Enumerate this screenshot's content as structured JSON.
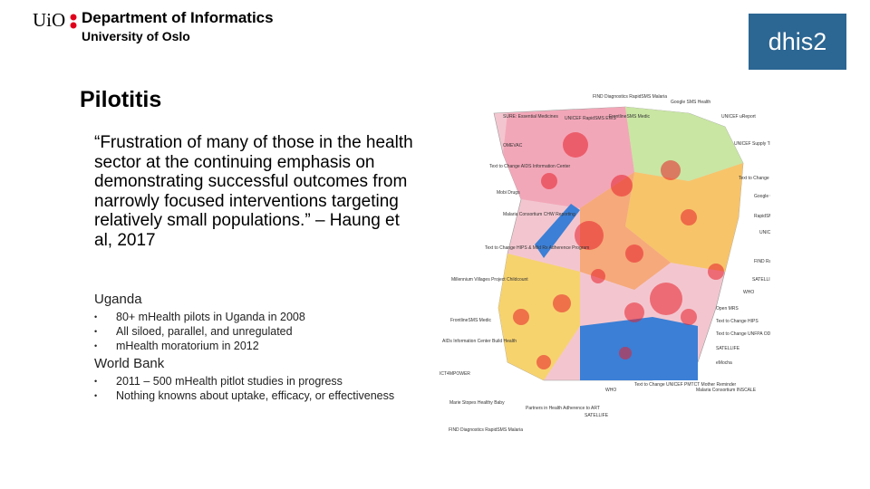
{
  "header": {
    "logo_text": "UiO",
    "department": "Department of Informatics",
    "university": "University of Oslo",
    "badge": "dhis2"
  },
  "slide": {
    "title": "Pilotitis",
    "quote": "“Frustration of many of those in the health sector at the continuing emphasis on demonstrating successful outcomes from narrowly focused interventions targeting relatively small populations.” – Haung et al, 2017",
    "sections": [
      {
        "heading": "Uganda",
        "bullets": [
          "80+ mHealth pilots in Uganda in 2008",
          "All siloed, parallel, and unregulated",
          "mHealth moratorium in 2012"
        ]
      },
      {
        "heading": "World Bank",
        "bullets": [
          "2011 – 500 mHealth pitlot studies in progress",
          "Nothing knowns about uptake, efficacy, or effectiveness"
        ]
      }
    ]
  },
  "map": {
    "labels": [
      "FIND Diagnostics RapidSMS Malaria",
      "Google SMS Health",
      "SURE: Essential Medicines",
      "UNICEF RapidSMS EWS",
      "FrontlineSMS Medic",
      "UNICEF uReport",
      "OMEVAC",
      "UNICEF Supply Tracking",
      "Text to Change AIDS Information Center",
      "Text to Change",
      "Mobi Drugs",
      "Google Clinic Finder",
      "Malaria Consortium CHW Reporting",
      "RapidSMS",
      "UNICEF ICCM",
      "Text to Change HIPS & Mild Rx Adherence Program",
      "FIND RapidSMS TB",
      "Millennium Villages Project Childcount",
      "SATELLIFE",
      "WHO",
      "Open MRS",
      "FrontlineSMS Medic",
      "Text to Change HIPS",
      "AIDs Information Center Build Health",
      "Text to Change UNFPA ODSC",
      "SATELLIFE",
      "eMocha",
      "ICT4MPOWER",
      "WHO",
      "Text to Change UNICEF PMTCT Mother Reminder",
      "Malaria Consortium INSCALE",
      "Marie Stopes Healthy Baby",
      "Partners in Health Adherence to ART",
      "SATELLIFE",
      "FIND Diagnostics RapidSMS Malaria"
    ]
  }
}
